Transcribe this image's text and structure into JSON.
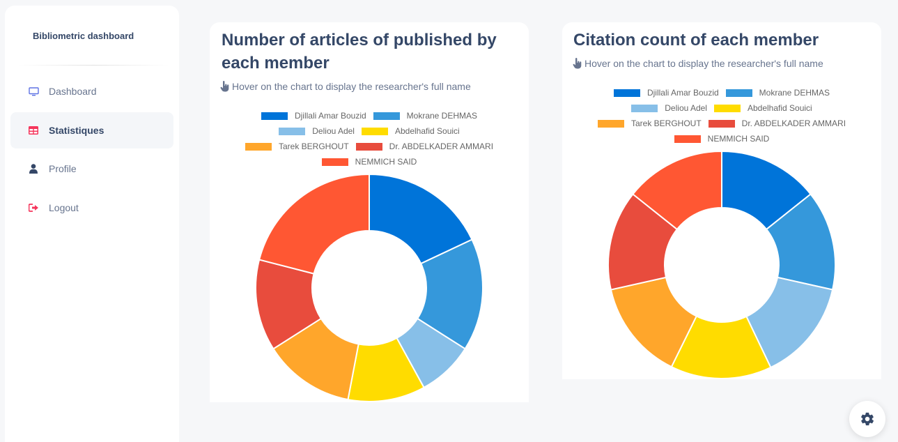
{
  "sidebar": {
    "brand": "Bibliometric dashboard",
    "items": [
      {
        "label": "Dashboard",
        "icon": "monitor-icon",
        "color": "#5e72e4"
      },
      {
        "label": "Statistiques",
        "icon": "table-icon",
        "color": "#f5365c",
        "active": true
      },
      {
        "label": "Profile",
        "icon": "user-icon",
        "color": "#344767"
      },
      {
        "label": "Logout",
        "icon": "logout-icon",
        "color": "#f5365c"
      }
    ]
  },
  "legend_colors": [
    "#0074d9",
    "#3598db",
    "#87bfe8",
    "#ffdc00",
    "#ffa62b",
    "#e84c3d",
    "#ff5733"
  ],
  "charts": {
    "articles": {
      "title": "Number of articles of published by each member",
      "hint": "Hover on the chart to display the researcher's full name"
    },
    "citations": {
      "title": "Citation count of each member",
      "hint": "Hover on the chart to display the researcher's full name"
    }
  },
  "chart_data": [
    {
      "type": "pie",
      "title": "Number of articles of published by each member",
      "categories": [
        "Djillali Amar Bouzid",
        "Mokrane DEHMAS",
        "Deliou Adel",
        "Abdelhafid Souici",
        "Tarek BERGHOUT",
        "Dr. ABDELKADER AMMARI",
        "NEMMICH SAID"
      ],
      "values": [
        18,
        16,
        8,
        11,
        13,
        13,
        21
      ],
      "colors": [
        "#0074d9",
        "#3598db",
        "#87bfe8",
        "#ffdc00",
        "#ffa62b",
        "#e84c3d",
        "#ff5733"
      ],
      "legend": "top",
      "donut": true
    },
    {
      "type": "pie",
      "title": "Citation count of each member",
      "categories": [
        "Djillali Amar Bouzid",
        "Mokrane DEHMAS",
        "Deliou Adel",
        "Abdelhafid Souici",
        "Tarek BERGHOUT",
        "Dr. ABDELKADER AMMARI",
        "NEMMICH SAID"
      ],
      "values": [
        14.3,
        14.2,
        14.4,
        14.4,
        14.2,
        14.2,
        14.3
      ],
      "colors": [
        "#0074d9",
        "#3598db",
        "#87bfe8",
        "#ffdc00",
        "#ffa62b",
        "#e84c3d",
        "#ff5733"
      ],
      "legend": "top",
      "donut": true
    }
  ],
  "settings": {
    "icon": "gear-icon"
  }
}
